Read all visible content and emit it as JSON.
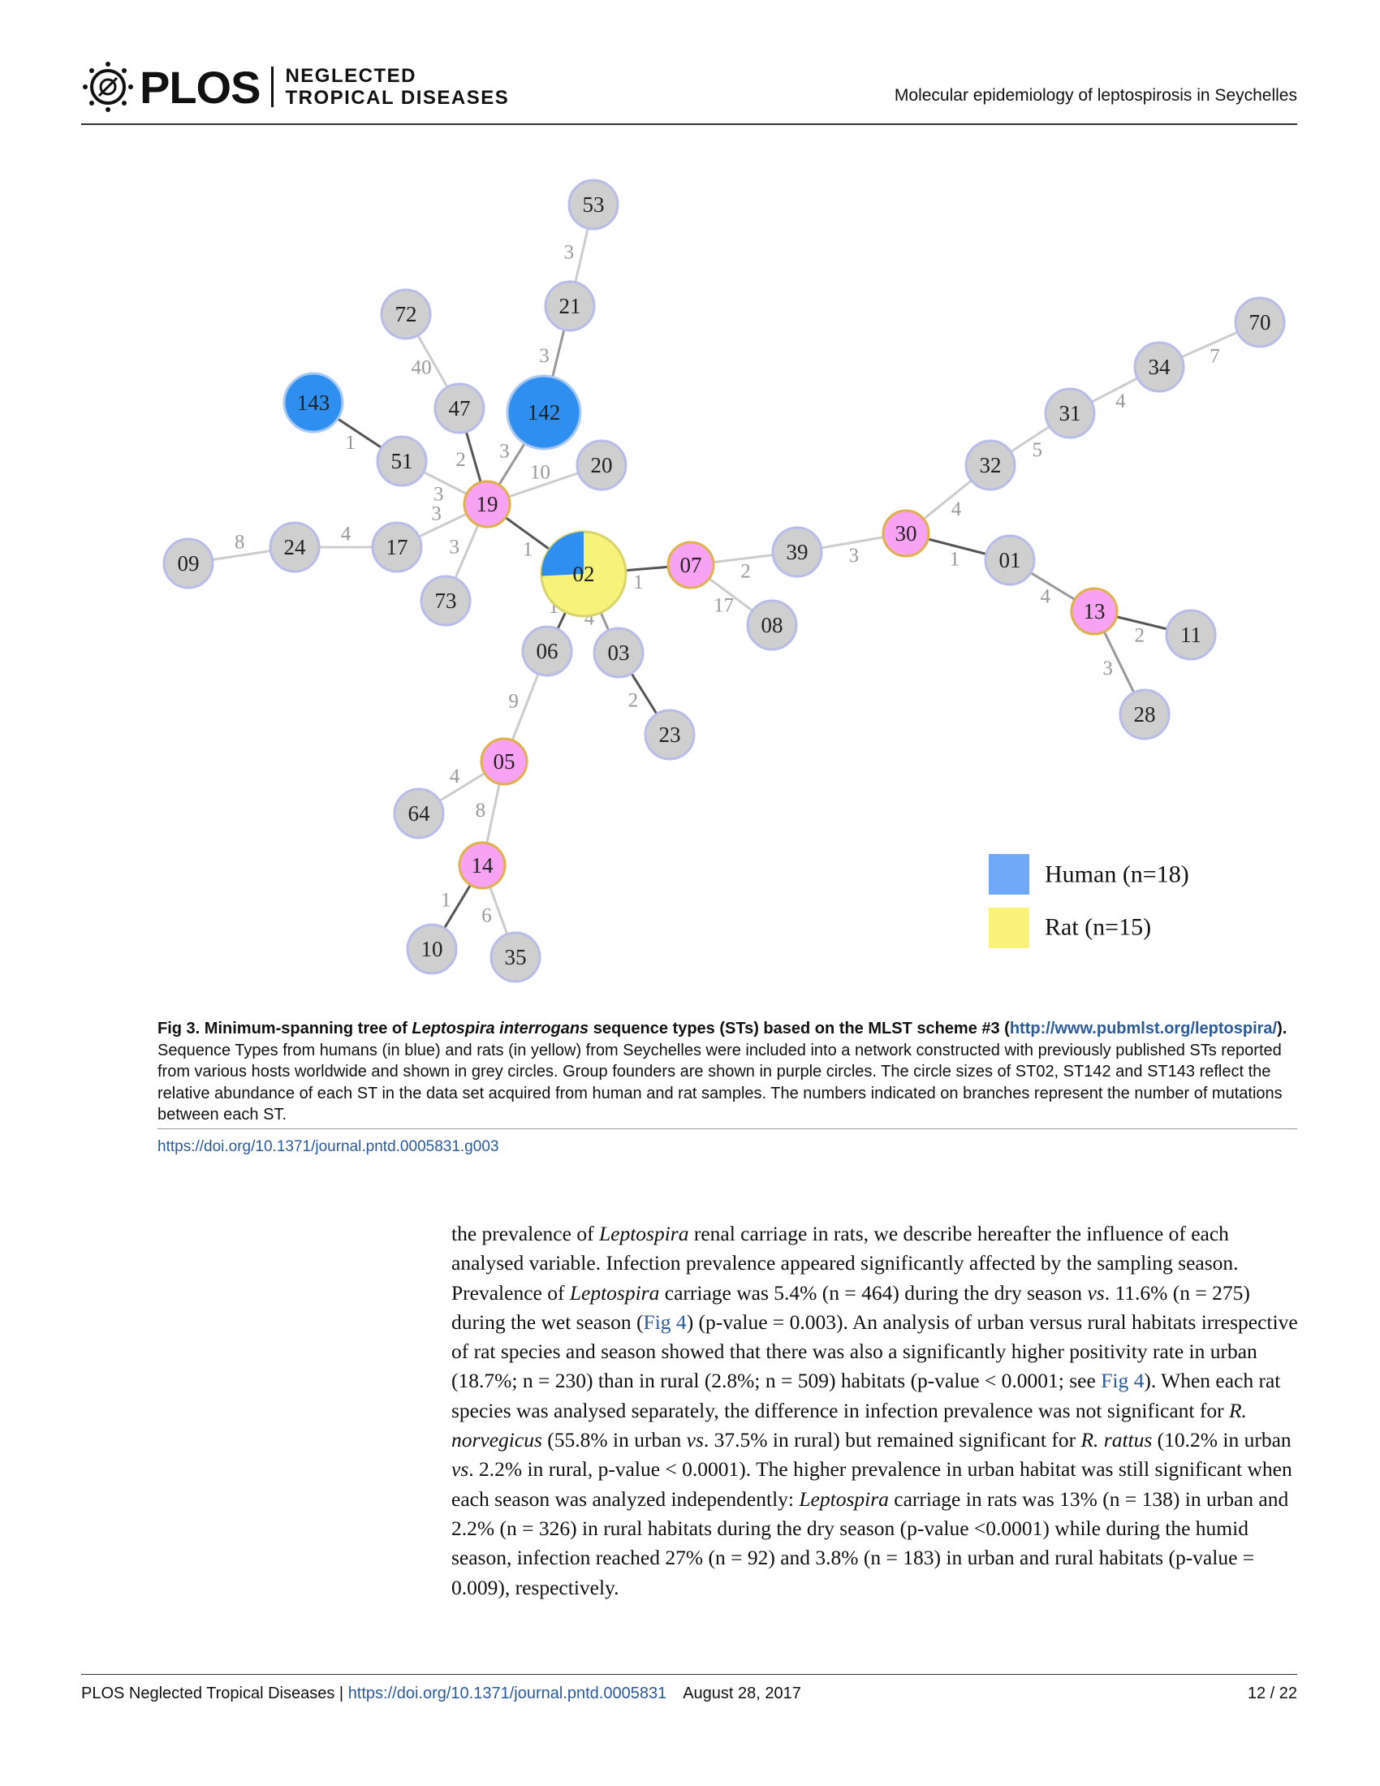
{
  "header": {
    "logo_word": "PLOS",
    "logo_sub_line1": "NEGLECTED",
    "logo_sub_line2": "TROPICAL DISEASES",
    "running_title": "Molecular epidemiology of leptospirosis in Seychelles"
  },
  "colors": {
    "grey_node": "#cfcfcf",
    "grey_stroke": "#b8bce8",
    "founder_node": "#f7a2f2",
    "founder_stroke": "#e0b14a",
    "human": "#2f8ff0",
    "rat": "#f7f37a",
    "legend_human": "#6ea8f7",
    "legend_rat": "#fbf27a",
    "edge_dark": "#555555",
    "edge_mid": "#999999",
    "edge_light": "#cccccc"
  },
  "figure": {
    "nodes": [
      {
        "id": "53",
        "label": "53"
      },
      {
        "id": "21",
        "label": "21"
      },
      {
        "id": "72",
        "label": "72"
      },
      {
        "id": "47",
        "label": "47"
      },
      {
        "id": "142",
        "label": "142"
      },
      {
        "id": "143",
        "label": "143"
      },
      {
        "id": "51",
        "label": "51"
      },
      {
        "id": "20",
        "label": "20"
      },
      {
        "id": "19",
        "label": "19"
      },
      {
        "id": "17",
        "label": "17"
      },
      {
        "id": "24",
        "label": "24"
      },
      {
        "id": "09",
        "label": "09"
      },
      {
        "id": "73",
        "label": "73"
      },
      {
        "id": "02",
        "label": "02"
      },
      {
        "id": "07",
        "label": "07"
      },
      {
        "id": "39",
        "label": "39"
      },
      {
        "id": "08",
        "label": "08"
      },
      {
        "id": "30",
        "label": "30"
      },
      {
        "id": "32",
        "label": "32"
      },
      {
        "id": "31",
        "label": "31"
      },
      {
        "id": "34",
        "label": "34"
      },
      {
        "id": "70",
        "label": "70"
      },
      {
        "id": "01",
        "label": "01"
      },
      {
        "id": "13",
        "label": "13"
      },
      {
        "id": "11",
        "label": "11"
      },
      {
        "id": "28",
        "label": "28"
      },
      {
        "id": "06",
        "label": "06"
      },
      {
        "id": "03",
        "label": "03"
      },
      {
        "id": "23",
        "label": "23"
      },
      {
        "id": "05",
        "label": "05"
      },
      {
        "id": "64",
        "label": "64"
      },
      {
        "id": "14",
        "label": "14"
      },
      {
        "id": "10",
        "label": "10"
      },
      {
        "id": "35",
        "label": "35"
      }
    ],
    "edges": [
      {
        "from": "53",
        "to": "21",
        "label": "3"
      },
      {
        "from": "21",
        "to": "142",
        "label": "3"
      },
      {
        "from": "72",
        "to": "47",
        "label": "40"
      },
      {
        "from": "47",
        "to": "19",
        "label": "2"
      },
      {
        "from": "142",
        "to": "19",
        "label": "3"
      },
      {
        "from": "143",
        "to": "51",
        "label": "1"
      },
      {
        "from": "51",
        "to": "19",
        "label": "3"
      },
      {
        "from": "20",
        "to": "19",
        "label": "10"
      },
      {
        "from": "19",
        "to": "17",
        "label": "3"
      },
      {
        "from": "19",
        "to": "73",
        "label": "3"
      },
      {
        "from": "19",
        "to": "02",
        "label": "1"
      },
      {
        "from": "17",
        "to": "24",
        "label": "4"
      },
      {
        "from": "24",
        "to": "09",
        "label": "8"
      },
      {
        "from": "02",
        "to": "07",
        "label": "1"
      },
      {
        "from": "02",
        "to": "06",
        "label": "1"
      },
      {
        "from": "02",
        "to": "03",
        "label": "4"
      },
      {
        "from": "07",
        "to": "39",
        "label": "2"
      },
      {
        "from": "07",
        "to": "08",
        "label": "17"
      },
      {
        "from": "39",
        "to": "30",
        "label": "3"
      },
      {
        "from": "30",
        "to": "32",
        "label": "4"
      },
      {
        "from": "30",
        "to": "01",
        "label": "1"
      },
      {
        "from": "32",
        "to": "31",
        "label": "5"
      },
      {
        "from": "31",
        "to": "34",
        "label": "4"
      },
      {
        "from": "34",
        "to": "70",
        "label": "7"
      },
      {
        "from": "01",
        "to": "13",
        "label": "4"
      },
      {
        "from": "13",
        "to": "11",
        "label": "2"
      },
      {
        "from": "13",
        "to": "28",
        "label": "3"
      },
      {
        "from": "03",
        "to": "23",
        "label": "2"
      },
      {
        "from": "06",
        "to": "05",
        "label": "9"
      },
      {
        "from": "05",
        "to": "64",
        "label": "4"
      },
      {
        "from": "05",
        "to": "14",
        "label": "8"
      },
      {
        "from": "14",
        "to": "10",
        "label": "1"
      },
      {
        "from": "14",
        "to": "35",
        "label": "6"
      }
    ],
    "legend": {
      "human": "Human (n=18)",
      "rat": "Rat (n=15)"
    }
  },
  "caption": {
    "fig_label": "Fig 3.",
    "title_pre": "Minimum-spanning tree of",
    "title_species": "Leptospira interrogans",
    "title_post": "sequence types (STs) based on the MLST scheme #3 (",
    "url": "http://www.pubmlst.org/leptospira/",
    "title_end": ").",
    "body": "Sequence Types from humans (in blue) and rats (in yellow) from Seychelles were included into a network constructed with previously published STs reported from various hosts worldwide and shown in grey circles. Group founders are shown in purple circles. The circle sizes of ST02, ST142 and ST143 reflect the relative abundance of each ST in the data set acquired from human and rat samples. The numbers indicated on branches represent the number of mutations between each ST.",
    "doi": "https://doi.org/10.1371/journal.pntd.0005831.g003"
  },
  "body_text": {
    "s1": "the prevalence of ",
    "s1_it": "Leptospira",
    "s2": " renal carriage in rats, we describe hereafter the influence of each analysed variable. Infection prevalence appeared significantly affected by the sampling season. Prevalence of ",
    "s2_it": "Leptospira",
    "s3": " carriage was 5.4% (n = 464) during the dry season ",
    "s3_it": "vs",
    "s4": ". 11.6% (n = 275) during the wet season (",
    "link1": "Fig 4",
    "s5": ") (p-value = 0.003). An analysis of urban versus rural habitats irrespective of rat species and season showed that there was also a significantly higher positivity rate in urban (18.7%; n = 230) than in rural (2.8%; n = 509) habitats (p-value < 0.0001; see ",
    "link2": "Fig 4",
    "s6": "). When each rat species was analysed separately, the difference in infection prevalence was not significant for ",
    "s6_it": "R. norvegicus",
    "s7": " (55.8% in urban ",
    "s7_it": "vs",
    "s8": ". 37.5% in rural) but remained significant for ",
    "s8_it": "R. rattus",
    "s9": " (10.2% in urban ",
    "s9_it": "vs",
    "s10": ". 2.2% in rural, p-value < 0.0001). The higher prevalence in urban habitat was still significant when each season was analyzed independently: ",
    "s10_it": "Leptospira",
    "s11": " carriage in rats was 13% (n = 138) in urban and 2.2% (n = 326) in rural habitats during the dry season (p-value <0.0001) while during the humid season, infection reached 27% (n = 92) and 3.8% (n = 183) in urban and rural habitats (p-value = 0.009), respectively."
  },
  "footer": {
    "journal": "PLOS Neglected Tropical Diseases | ",
    "doi": "https://doi.org/10.1371/journal.pntd.0005831",
    "date": "August 28, 2017",
    "page": "12 / 22"
  }
}
